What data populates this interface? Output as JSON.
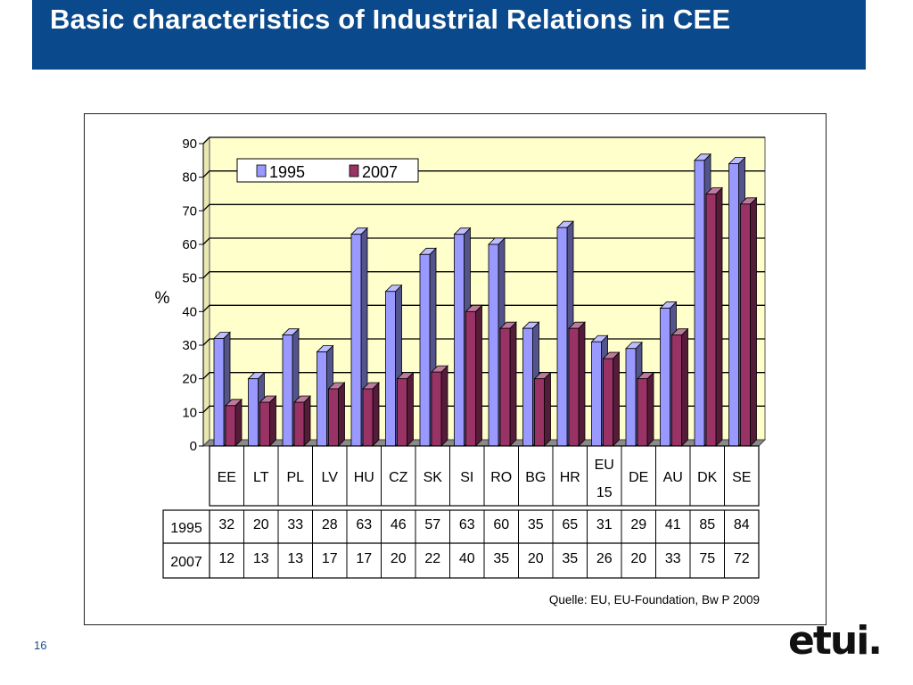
{
  "slide": {
    "title": "Basic characteristics of Industrial Relations in CEE",
    "page_number": "16",
    "logo_text": "etui.",
    "accent_color": "#0a4a8c"
  },
  "chart_data": {
    "type": "bar",
    "title": "",
    "xlabel": "",
    "ylabel": "%",
    "ylim": [
      0,
      90
    ],
    "yticks": [
      0,
      10,
      20,
      30,
      40,
      50,
      60,
      70,
      80,
      90
    ],
    "grid": true,
    "legend": "top-left",
    "categories": [
      "EE",
      "LT",
      "PL",
      "LV",
      "HU",
      "CZ",
      "SK",
      "SI",
      "RO",
      "BG",
      "HR",
      "EU 15",
      "DE",
      "AU",
      "DK",
      "SE"
    ],
    "series": [
      {
        "name": "1995",
        "values": [
          32,
          20,
          33,
          28,
          63,
          46,
          57,
          63,
          60,
          35,
          65,
          31,
          29,
          41,
          85,
          84
        ],
        "color": "#9999ff"
      },
      {
        "name": "2007",
        "values": [
          12,
          13,
          13,
          17,
          17,
          20,
          22,
          40,
          35,
          20,
          35,
          26,
          20,
          33,
          75,
          72
        ],
        "color": "#993366"
      }
    ],
    "plot_background": "#ffffcc",
    "source_note": "Quelle: EU, EU-Foundation, Bw P 2009"
  }
}
